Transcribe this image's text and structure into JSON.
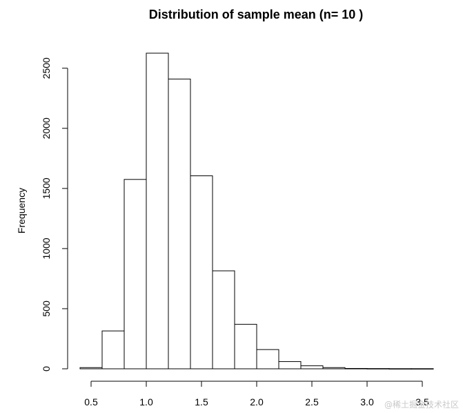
{
  "chart_data": {
    "type": "bar",
    "title": "Distribution of sample mean (n= 10 )",
    "xlabel": "",
    "ylabel": "Frequency",
    "bin_edges": [
      0.4,
      0.6,
      0.8,
      1.0,
      1.2,
      1.4,
      1.6,
      1.8,
      2.0,
      2.2,
      2.4,
      2.6,
      2.8,
      3.0,
      3.2,
      3.4,
      3.6
    ],
    "values": [
      10,
      315,
      1575,
      2625,
      2410,
      1605,
      815,
      370,
      160,
      60,
      25,
      10,
      3,
      2,
      1,
      1
    ],
    "x_ticks": [
      "0.5",
      "1.0",
      "1.5",
      "2.0",
      "2.5",
      "3.0",
      "3.5"
    ],
    "x_tick_values": [
      0.5,
      1.0,
      1.5,
      2.0,
      2.5,
      3.0,
      3.5
    ],
    "y_ticks": [
      "0",
      "500",
      "1000",
      "1500",
      "2000",
      "2500"
    ],
    "y_tick_values": [
      0,
      500,
      1000,
      1500,
      2000,
      2500
    ],
    "xlim": [
      0.4,
      3.6
    ],
    "ylim": [
      0,
      2625
    ],
    "grid": false
  },
  "watermark": "@稀土掘金技术社区"
}
